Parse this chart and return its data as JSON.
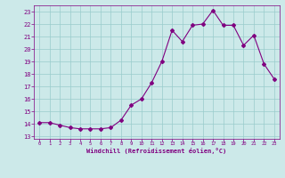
{
  "x": [
    0,
    1,
    2,
    3,
    4,
    5,
    6,
    7,
    8,
    9,
    10,
    11,
    12,
    13,
    14,
    15,
    16,
    17,
    18,
    19,
    20,
    21,
    22,
    23
  ],
  "y": [
    14.1,
    14.1,
    13.9,
    13.7,
    13.6,
    13.6,
    13.6,
    13.7,
    14.3,
    15.5,
    16.0,
    17.3,
    19.0,
    21.5,
    20.6,
    21.9,
    22.0,
    23.1,
    21.9,
    21.9,
    20.3,
    21.1,
    18.8,
    17.6
  ],
  "line_color": "#800080",
  "marker": "D",
  "marker_size": 2,
  "bg_color": "#cce9e9",
  "grid_color": "#99cccc",
  "xlabel": "Windchill (Refroidissement éolien,°C)",
  "xlabel_color": "#800080",
  "tick_color": "#800080",
  "ylim": [
    12.8,
    23.5
  ],
  "yticks": [
    13,
    14,
    15,
    16,
    17,
    18,
    19,
    20,
    21,
    22,
    23
  ],
  "xlim": [
    -0.5,
    23.5
  ],
  "xticks": [
    0,
    1,
    2,
    3,
    4,
    5,
    6,
    7,
    8,
    9,
    10,
    11,
    12,
    13,
    14,
    15,
    16,
    17,
    18,
    19,
    20,
    21,
    22,
    23
  ]
}
